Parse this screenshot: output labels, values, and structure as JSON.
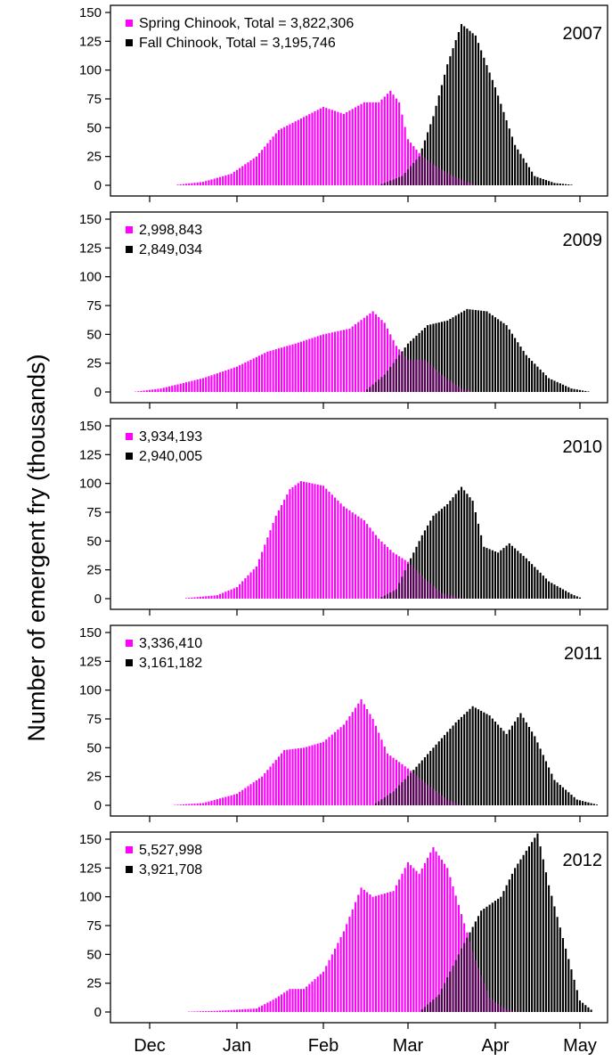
{
  "figure": {
    "ylabel": "Number of emergent fry (thousands)",
    "month_ticks": [
      "Dec",
      "Jan",
      "Feb",
      "Mar",
      "Apr",
      "May"
    ],
    "y_ticks": [
      0,
      25,
      50,
      75,
      100,
      125,
      150
    ],
    "colors": {
      "spring": "#ff00ff",
      "fall": "#000000",
      "overlap": "#5a0a4a"
    }
  },
  "chart_data": [
    {
      "type": "bar",
      "year": "2007",
      "xunit": "date",
      "ylim": [
        0,
        150
      ],
      "legend": [
        "Spring Chinook, Total = 3,822,306",
        "Fall Chinook, Total = 3,195,746"
      ],
      "series": [
        {
          "name": "Spring Chinook, Total = 3,822,306",
          "color": "#ff00ff",
          "points": [
            [
              "Dec 09",
              0
            ],
            [
              "Dec 20",
              3
            ],
            [
              "Dec 30",
              10
            ],
            [
              "Jan 08",
              25
            ],
            [
              "Jan 16",
              48
            ],
            [
              "Jan 24",
              58
            ],
            [
              "Feb 01",
              68
            ],
            [
              "Feb 08",
              62
            ],
            [
              "Feb 15",
              72
            ],
            [
              "Feb 20",
              72
            ],
            [
              "Feb 24",
              82
            ],
            [
              "Feb 27",
              72
            ],
            [
              "Mar 01",
              40
            ],
            [
              "Mar 05",
              28
            ],
            [
              "Mar 10",
              18
            ],
            [
              "Mar 17",
              8
            ],
            [
              "Mar 25",
              0
            ]
          ]
        },
        {
          "name": "Fall Chinook, Total = 3,195,746",
          "color": "#000000",
          "points": [
            [
              "Feb 20",
              0
            ],
            [
              "Feb 28",
              8
            ],
            [
              "Mar 05",
              25
            ],
            [
              "Mar 10",
              60
            ],
            [
              "Mar 15",
              105
            ],
            [
              "Mar 20",
              140
            ],
            [
              "Mar 25",
              130
            ],
            [
              "Apr 01",
              85
            ],
            [
              "Apr 08",
              35
            ],
            [
              "Apr 15",
              8
            ],
            [
              "Apr 22",
              2
            ],
            [
              "Apr 30",
              0
            ]
          ]
        }
      ]
    },
    {
      "type": "bar",
      "year": "2009",
      "xunit": "date",
      "ylim": [
        0,
        150
      ],
      "legend": [
        "2,998,843",
        "2,849,034"
      ],
      "series": [
        {
          "name": "2,998,843",
          "color": "#ff00ff",
          "points": [
            [
              "Nov 25",
              0
            ],
            [
              "Dec 05",
              3
            ],
            [
              "Dec 20",
              12
            ],
            [
              "Jan 01",
              22
            ],
            [
              "Jan 12",
              35
            ],
            [
              "Jan 22",
              42
            ],
            [
              "Feb 01",
              50
            ],
            [
              "Feb 10",
              55
            ],
            [
              "Feb 18",
              70
            ],
            [
              "Feb 22",
              60
            ],
            [
              "Feb 26",
              40
            ],
            [
              "Mar 01",
              28
            ],
            [
              "Mar 07",
              28
            ],
            [
              "Mar 13",
              15
            ],
            [
              "Mar 20",
              3
            ],
            [
              "Mar 25",
              0
            ]
          ]
        },
        {
          "name": "2,849,034",
          "color": "#000000",
          "points": [
            [
              "Feb 15",
              0
            ],
            [
              "Feb 22",
              15
            ],
            [
              "Mar 01",
              42
            ],
            [
              "Mar 08",
              58
            ],
            [
              "Mar 15",
              62
            ],
            [
              "Mar 22",
              72
            ],
            [
              "Mar 29",
              70
            ],
            [
              "Apr 05",
              58
            ],
            [
              "Apr 12",
              32
            ],
            [
              "Apr 20",
              12
            ],
            [
              "Apr 28",
              3
            ],
            [
              "May 05",
              0
            ]
          ]
        }
      ]
    },
    {
      "type": "bar",
      "year": "2010",
      "xunit": "date",
      "ylim": [
        0,
        150
      ],
      "legend": [
        "3,934,193",
        "2,940,005"
      ],
      "series": [
        {
          "name": "3,934,193",
          "color": "#ff00ff",
          "points": [
            [
              "Dec 12",
              0
            ],
            [
              "Dec 25",
              3
            ],
            [
              "Jan 01",
              10
            ],
            [
              "Jan 08",
              28
            ],
            [
              "Jan 15",
              72
            ],
            [
              "Jan 20",
              95
            ],
            [
              "Jan 24",
              102
            ],
            [
              "Feb 01",
              98
            ],
            [
              "Feb 08",
              80
            ],
            [
              "Feb 15",
              68
            ],
            [
              "Feb 20",
              52
            ],
            [
              "Feb 25",
              40
            ],
            [
              "Mar 01",
              32
            ],
            [
              "Mar 08",
              15
            ],
            [
              "Mar 13",
              5
            ],
            [
              "Mar 20",
              0
            ]
          ]
        },
        {
          "name": "2,940,005",
          "color": "#000000",
          "points": [
            [
              "Feb 20",
              0
            ],
            [
              "Feb 26",
              8
            ],
            [
              "Mar 01",
              30
            ],
            [
              "Mar 06",
              55
            ],
            [
              "Mar 10",
              72
            ],
            [
              "Mar 15",
              82
            ],
            [
              "Mar 20",
              97
            ],
            [
              "Mar 24",
              85
            ],
            [
              "Mar 28",
              45
            ],
            [
              "Apr 02",
              40
            ],
            [
              "Apr 06",
              48
            ],
            [
              "Apr 12",
              35
            ],
            [
              "Apr 20",
              15
            ],
            [
              "Apr 28",
              4
            ],
            [
              "May 02",
              0
            ]
          ]
        }
      ]
    },
    {
      "type": "bar",
      "year": "2011",
      "xunit": "date",
      "ylim": [
        0,
        150
      ],
      "legend": [
        "3,336,410",
        "3,161,182"
      ],
      "series": [
        {
          "name": "3,336,410",
          "color": "#ff00ff",
          "points": [
            [
              "Dec 08",
              0
            ],
            [
              "Dec 20",
              2
            ],
            [
              "Jan 01",
              10
            ],
            [
              "Jan 10",
              25
            ],
            [
              "Jan 18",
              48
            ],
            [
              "Jan 25",
              50
            ],
            [
              "Feb 01",
              55
            ],
            [
              "Feb 08",
              70
            ],
            [
              "Feb 14",
              92
            ],
            [
              "Feb 18",
              75
            ],
            [
              "Feb 23",
              45
            ],
            [
              "Mar 01",
              32
            ],
            [
              "Mar 08",
              18
            ],
            [
              "Mar 15",
              5
            ],
            [
              "Mar 20",
              0
            ]
          ]
        },
        {
          "name": "3,161,182",
          "color": "#000000",
          "points": [
            [
              "Feb 18",
              0
            ],
            [
              "Feb 25",
              12
            ],
            [
              "Mar 02",
              28
            ],
            [
              "Mar 10",
              50
            ],
            [
              "Mar 18",
              72
            ],
            [
              "Mar 24",
              86
            ],
            [
              "Mar 30",
              78
            ],
            [
              "Apr 05",
              62
            ],
            [
              "Apr 10",
              80
            ],
            [
              "Apr 15",
              60
            ],
            [
              "Apr 22",
              22
            ],
            [
              "Apr 30",
              5
            ],
            [
              "May 08",
              0
            ]
          ]
        }
      ]
    },
    {
      "type": "bar",
      "year": "2012",
      "xunit": "date",
      "ylim": [
        0,
        150
      ],
      "legend": [
        "5,527,998",
        "3,921,708"
      ],
      "series": [
        {
          "name": "5,527,998",
          "color": "#ff00ff",
          "points": [
            [
              "Dec 10",
              0
            ],
            [
              "Dec 25",
              1
            ],
            [
              "Jan 08",
              3
            ],
            [
              "Jan 15",
              12
            ],
            [
              "Jan 20",
              20
            ],
            [
              "Jan 25",
              20
            ],
            [
              "Feb 01",
              35
            ],
            [
              "Feb 08",
              70
            ],
            [
              "Feb 14",
              108
            ],
            [
              "Feb 18",
              100
            ],
            [
              "Feb 25",
              105
            ],
            [
              "Mar 01",
              130
            ],
            [
              "Mar 05",
              120
            ],
            [
              "Mar 10",
              143
            ],
            [
              "Mar 15",
              125
            ],
            [
              "Mar 20",
              85
            ],
            [
              "Mar 25",
              45
            ],
            [
              "Mar 30",
              12
            ],
            [
              "Apr 05",
              2
            ],
            [
              "Apr 10",
              0
            ]
          ]
        },
        {
          "name": "3,921,708",
          "color": "#000000",
          "points": [
            [
              "Mar 05",
              0
            ],
            [
              "Mar 12",
              15
            ],
            [
              "Mar 20",
              55
            ],
            [
              "Mar 27",
              88
            ],
            [
              "Apr 03",
              100
            ],
            [
              "Apr 08",
              125
            ],
            [
              "Apr 12",
              140
            ],
            [
              "Apr 16",
              155
            ],
            [
              "Apr 20",
              110
            ],
            [
              "Apr 26",
              55
            ],
            [
              "May 01",
              10
            ],
            [
              "May 06",
              0
            ]
          ]
        }
      ]
    }
  ]
}
